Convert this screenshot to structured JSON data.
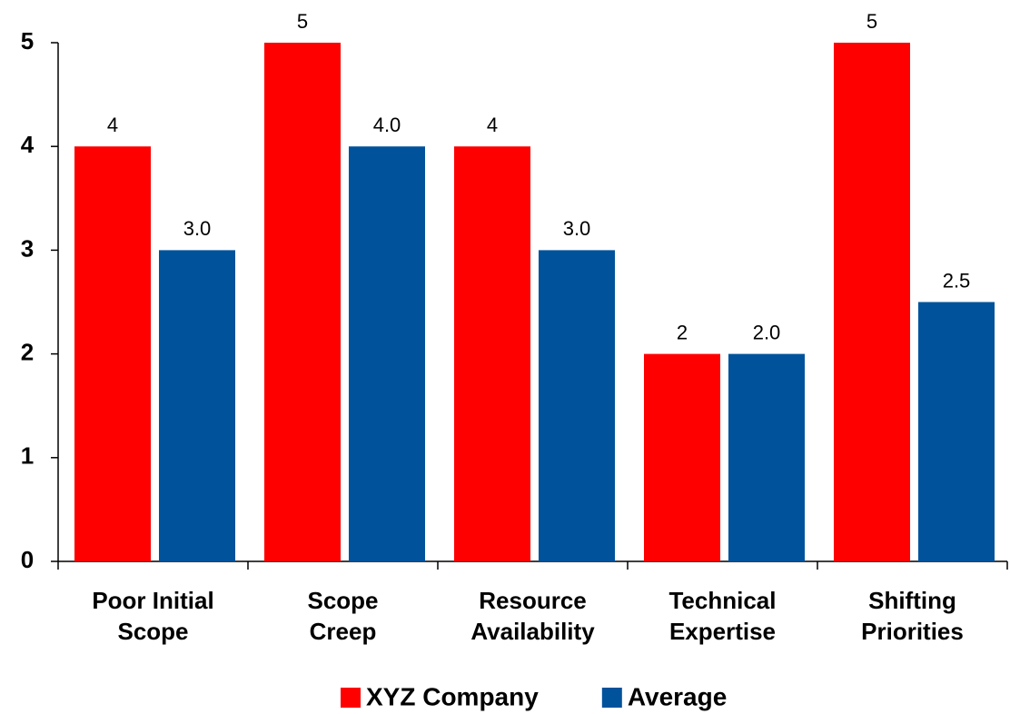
{
  "chart_data": {
    "type": "bar",
    "categories": [
      "Poor Initial\nScope",
      "Scope\nCreep",
      "Resource\nAvailability",
      "Technical\nExpertise",
      "Shifting\nPriorities"
    ],
    "series": [
      {
        "name": "XYZ Company",
        "color": "#ff0000",
        "values": [
          4,
          5,
          4,
          2,
          5
        ]
      },
      {
        "name": "Average",
        "color": "#00529b",
        "values": [
          3.0,
          4.0,
          3.0,
          2.0,
          2.5
        ],
        "value_labels": [
          "3.0",
          "4.0",
          "3.0",
          "2.0",
          "2.5"
        ]
      }
    ],
    "ylim": [
      0,
      5
    ],
    "yticks": [
      0,
      1,
      2,
      3,
      4,
      5
    ],
    "grid": false,
    "legend": "bottom"
  }
}
